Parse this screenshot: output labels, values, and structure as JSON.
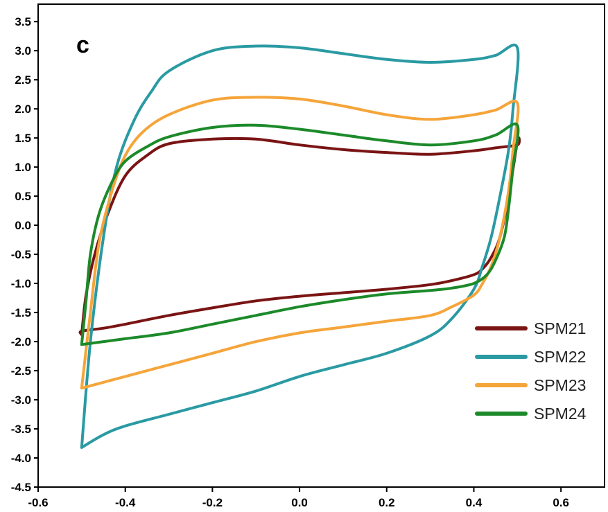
{
  "chart_data": {
    "type": "line",
    "title": "",
    "xlabel": "",
    "ylabel": "",
    "panel_label": "c",
    "xlim": [
      -0.6,
      0.7
    ],
    "ylim": [
      -4.5,
      3.8
    ],
    "xticks": [
      -0.6,
      -0.4,
      -0.2,
      0.0,
      0.2,
      0.4,
      0.6
    ],
    "xtick_labels": [
      "-0.6",
      "-0.4",
      "-0.2",
      "0.0",
      "0.2",
      "0.4",
      "0.6"
    ],
    "yticks": [
      3.5,
      3.0,
      2.5,
      2.0,
      1.5,
      1.0,
      0.5,
      0.0,
      -0.5,
      -1.0,
      -1.5,
      -2.0,
      -2.5,
      -3.0,
      -3.5,
      -4.0,
      -4.5
    ],
    "ytick_labels": [
      "3.5",
      "3.0",
      "2.5",
      "2.0",
      "1.5",
      "1.0",
      "0.5",
      "0.0",
      "-0.5",
      "-1.0",
      "-1.5",
      "-2.0",
      "-2.5",
      "-3.0",
      "-3.5",
      "-4.0",
      "-4.5"
    ],
    "grid": false,
    "legend_position": "bottom-right",
    "series": [
      {
        "name": "SPM21",
        "color": "#7a1414",
        "x": [
          -0.5,
          -0.49,
          -0.47,
          -0.44,
          -0.4,
          -0.35,
          -0.3,
          -0.2,
          -0.1,
          0.0,
          0.1,
          0.2,
          0.3,
          0.4,
          0.45,
          0.5,
          0.5,
          0.48,
          0.46,
          0.44,
          0.42,
          0.4,
          0.35,
          0.3,
          0.2,
          0.1,
          0.0,
          -0.1,
          -0.2,
          -0.3,
          -0.4,
          -0.45,
          -0.5,
          -0.5
        ],
        "y": [
          -1.88,
          -1.2,
          -0.5,
          0.2,
          0.85,
          1.2,
          1.4,
          1.48,
          1.48,
          1.38,
          1.3,
          1.25,
          1.22,
          1.28,
          1.33,
          1.38,
          1.45,
          0.5,
          -0.2,
          -0.55,
          -0.75,
          -0.85,
          -0.95,
          -1.02,
          -1.1,
          -1.16,
          -1.22,
          -1.3,
          -1.42,
          -1.55,
          -1.7,
          -1.77,
          -1.82,
          -1.88
        ]
      },
      {
        "name": "SPM22",
        "color": "#2a9aa3",
        "x": [
          -0.5,
          -0.48,
          -0.45,
          -0.42,
          -0.38,
          -0.34,
          -0.3,
          -0.2,
          -0.1,
          0.0,
          0.1,
          0.2,
          0.3,
          0.4,
          0.45,
          0.5,
          0.49,
          0.48,
          0.46,
          0.44,
          0.42,
          0.4,
          0.35,
          0.3,
          0.2,
          0.1,
          0.0,
          -0.1,
          -0.2,
          -0.3,
          -0.4,
          -0.45,
          -0.5
        ],
        "y": [
          -3.82,
          -2.0,
          -0.2,
          1.0,
          1.8,
          2.3,
          2.65,
          3.0,
          3.08,
          3.05,
          2.95,
          2.85,
          2.8,
          2.85,
          2.92,
          3.05,
          2.0,
          1.3,
          0.5,
          -0.2,
          -0.7,
          -1.1,
          -1.6,
          -1.9,
          -2.2,
          -2.4,
          -2.6,
          -2.85,
          -3.05,
          -3.25,
          -3.45,
          -3.6,
          -3.82
        ]
      },
      {
        "name": "SPM23",
        "color": "#f5a53a",
        "x": [
          -0.5,
          -0.48,
          -0.46,
          -0.43,
          -0.4,
          -0.36,
          -0.3,
          -0.2,
          -0.1,
          0.0,
          0.1,
          0.2,
          0.3,
          0.4,
          0.45,
          0.5,
          0.49,
          0.48,
          0.46,
          0.44,
          0.42,
          0.4,
          0.35,
          0.3,
          0.2,
          0.1,
          0.0,
          -0.1,
          -0.2,
          -0.3,
          -0.4,
          -0.45,
          -0.5
        ],
        "y": [
          -2.8,
          -1.5,
          -0.3,
          0.6,
          1.2,
          1.6,
          1.9,
          2.15,
          2.2,
          2.17,
          2.05,
          1.9,
          1.82,
          1.9,
          1.98,
          2.1,
          1.3,
          0.6,
          -0.2,
          -0.7,
          -1.0,
          -1.2,
          -1.4,
          -1.55,
          -1.65,
          -1.75,
          -1.85,
          -2.0,
          -2.2,
          -2.4,
          -2.6,
          -2.7,
          -2.8
        ]
      },
      {
        "name": "SPM24",
        "color": "#1c8a2a",
        "x": [
          -0.5,
          -0.49,
          -0.48,
          -0.46,
          -0.43,
          -0.4,
          -0.35,
          -0.3,
          -0.2,
          -0.1,
          0.0,
          0.1,
          0.2,
          0.3,
          0.4,
          0.45,
          0.5,
          0.49,
          0.48,
          0.47,
          0.45,
          0.43,
          0.4,
          0.35,
          0.3,
          0.2,
          0.1,
          0.0,
          -0.1,
          -0.2,
          -0.3,
          -0.4,
          -0.45,
          -0.5
        ],
        "y": [
          -2.05,
          -1.3,
          -0.5,
          0.2,
          0.75,
          1.1,
          1.35,
          1.52,
          1.68,
          1.72,
          1.65,
          1.55,
          1.45,
          1.38,
          1.45,
          1.55,
          1.72,
          1.0,
          0.3,
          -0.2,
          -0.6,
          -0.85,
          -1.0,
          -1.08,
          -1.12,
          -1.18,
          -1.28,
          -1.4,
          -1.55,
          -1.7,
          -1.85,
          -1.95,
          -2.0,
          -2.05
        ]
      }
    ]
  }
}
